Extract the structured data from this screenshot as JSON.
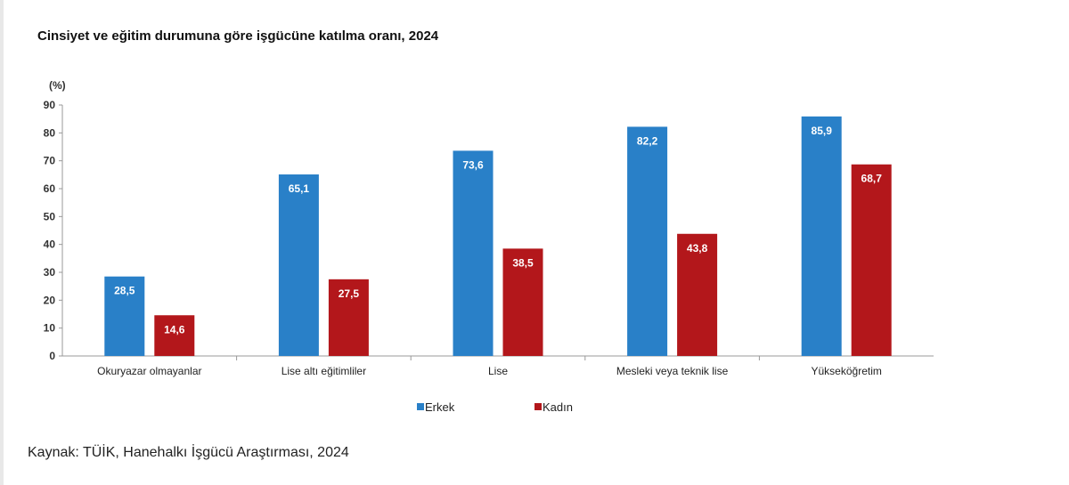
{
  "chart_data": {
    "type": "bar",
    "title": "Cinsiyet ve eğitim durumuna göre işgücüne katılma oranı, 2024",
    "ylabel": "(%)",
    "xlabel": "",
    "ylim": [
      0,
      90
    ],
    "yticks": [
      0,
      10,
      20,
      30,
      40,
      50,
      60,
      70,
      80,
      90
    ],
    "categories": [
      "Okuryazar olmayanlar",
      "Lise altı eğitimliler",
      "Lise",
      "Mesleki veya teknik lise",
      "Yükseköğretim"
    ],
    "series": [
      {
        "name": "Erkek",
        "color": "#2980c8",
        "values": [
          28.5,
          65.1,
          73.6,
          82.2,
          85.9
        ],
        "labels": [
          "28,5",
          "65,1",
          "73,6",
          "82,2",
          "85,9"
        ]
      },
      {
        "name": "Kadın",
        "color": "#b3171b",
        "values": [
          14.6,
          27.5,
          38.5,
          43.8,
          68.7
        ],
        "labels": [
          "14,6",
          "27,5",
          "38,5",
          "43,8",
          "68,7"
        ]
      }
    ],
    "legend": "bottom-center",
    "grid": false
  },
  "source": "Kaynak: TÜİK, Hanehalkı İşgücü Araştırması, 2024"
}
